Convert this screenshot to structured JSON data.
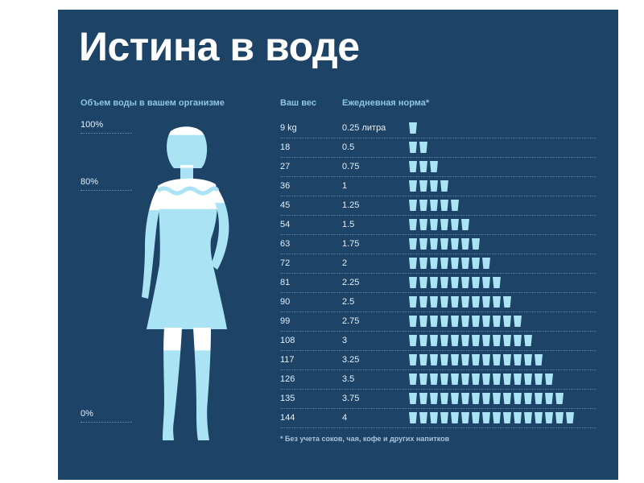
{
  "title": "Истина в воде",
  "left": {
    "heading": "Объем воды в вашем организме",
    "levels": [
      "100%",
      "80%",
      "0%"
    ]
  },
  "table": {
    "col_weight": "Ваш вес",
    "col_norm": "Ежедневная норма*",
    "rows": [
      {
        "weight": "9 kg",
        "liters": "0.25 литра",
        "glasses": 1
      },
      {
        "weight": "18",
        "liters": "0.5",
        "glasses": 2
      },
      {
        "weight": "27",
        "liters": "0.75",
        "glasses": 3
      },
      {
        "weight": "36",
        "liters": "1",
        "glasses": 4
      },
      {
        "weight": "45",
        "liters": "1.25",
        "glasses": 5
      },
      {
        "weight": "54",
        "liters": "1.5",
        "glasses": 6
      },
      {
        "weight": "63",
        "liters": "1.75",
        "glasses": 7
      },
      {
        "weight": "72",
        "liters": "2",
        "glasses": 8
      },
      {
        "weight": "81",
        "liters": "2.25",
        "glasses": 9
      },
      {
        "weight": "90",
        "liters": "2.5",
        "glasses": 10
      },
      {
        "weight": "99",
        "liters": "2.75",
        "glasses": 11
      },
      {
        "weight": "108",
        "liters": "3",
        "glasses": 12
      },
      {
        "weight": "117",
        "liters": "3.25",
        "glasses": 13
      },
      {
        "weight": "126",
        "liters": "3.5",
        "glasses": 14
      },
      {
        "weight": "135",
        "liters": "3.75",
        "glasses": 15
      },
      {
        "weight": "144",
        "liters": "4",
        "glasses": 16
      }
    ]
  },
  "footnote": "* Без учета соков, чая, кофе и других напитков",
  "colors": {
    "background": "#1d4467",
    "water": "#a9e3f4",
    "accent": "#8bc6e6",
    "text": "#e7eef5"
  },
  "icons": {
    "figure": "woman-silhouette-icon",
    "glass": "water-glass-icon"
  }
}
